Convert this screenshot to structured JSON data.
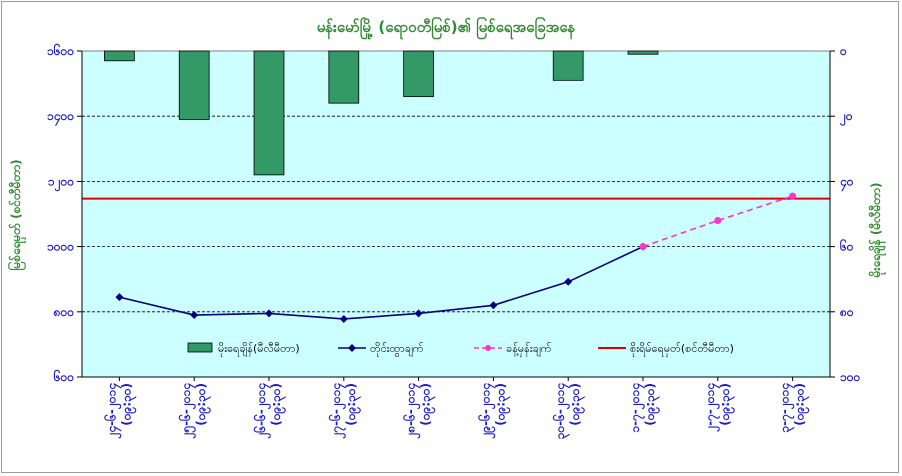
{
  "chart_data": {
    "type": "bar+line",
    "title": "မန်းမော်မြို့ (ရောဝတီမြစ်)၏ မြစ်ရေအခြေအနေ",
    "ylabel_left": "မြစ်ရေမှတ် (စင်တီမီတာ)",
    "ylabel_right": "မိုးရေချိန် (မီလီမီတာ)",
    "left_axis": {
      "min": 600,
      "max": 1600,
      "ticks": [
        "၁၆၀၀",
        "၁၄၀၀",
        "၁၂၀၀",
        "၁၀၀၀",
        "၈၀၀",
        "၆၀၀"
      ],
      "tick_values": [
        1600,
        1400,
        1200,
        1000,
        800,
        600
      ]
    },
    "right_axis": {
      "min": 0,
      "max": 100,
      "inverted": true,
      "ticks": [
        "၀",
        "၂၀",
        "၄၀",
        "၆၀",
        "၈၀",
        "၁၀၀"
      ],
      "tick_values": [
        0,
        20,
        40,
        60,
        80,
        100
      ]
    },
    "categories": [
      "၂၄-၆-၂၀၁၄\n(၀၉:၃၀)",
      "၂၅-၆-၂၀၁၄\n(၀၉:၃၀)",
      "၂၆-၆-၂၀၁၄\n(၀၉:၃၀)",
      "၂၇-၆-၂၀၁၄\n(၀၉:၃၀)",
      "၂၈-၆-၂၀၁၄\n(၀၉:၃၀)",
      "၂၉-၆-၂၀၁၄\n(၀၉:၃၀)",
      "၃၀-၆-၂၀၁၄\n(၀၉:၃၀)",
      "၁-၇-၂၀၁၄\n(၀၉:၃၀)",
      "၂-၇-၂၀၁၄\n(၀၉:၃၀)",
      "၃-၇-၂၀၁၄\n(၀၉:၃၀)"
    ],
    "series": [
      {
        "name": "မိုးရေချိန်(မီလီမီတာ)",
        "kind": "bar",
        "axis": "right",
        "color": "#339966",
        "values": [
          3,
          21,
          38,
          16,
          14,
          0,
          9,
          1,
          0,
          0
        ]
      },
      {
        "name": "တိုင်းထွာချက်",
        "kind": "line",
        "axis": "left",
        "color": "#000080",
        "values": [
          845,
          790,
          795,
          778,
          795,
          820,
          892,
          1000,
          null,
          null
        ]
      },
      {
        "name": "ခန့်မှန်းချက်",
        "kind": "line-dashed",
        "axis": "left",
        "color": "#ff33cc",
        "values": [
          null,
          null,
          null,
          null,
          null,
          null,
          null,
          1000,
          1080,
          1155
        ]
      },
      {
        "name": "စိုးရိမ်ရေမှတ်(စင်တီမီတာ)",
        "kind": "hline",
        "axis": "left",
        "color": "#e60000",
        "value": 1147
      }
    ],
    "grid": true,
    "legend_position": "bottom-inside"
  }
}
